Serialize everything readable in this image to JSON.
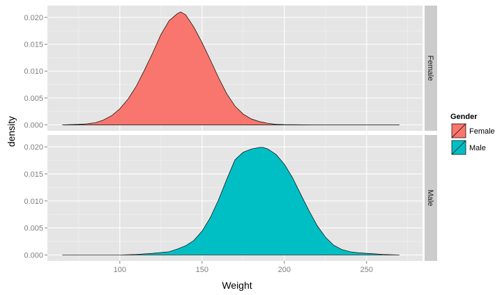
{
  "chart_data": {
    "type": "area",
    "xlabel": "Weight",
    "ylabel": "density",
    "xlim": [
      56,
      284
    ],
    "ylim": [
      -0.0011,
      0.0222
    ],
    "x_ticks": [
      100,
      150,
      200,
      250
    ],
    "x_tick_labels": [
      "100",
      "150",
      "200",
      "250"
    ],
    "y_ticks": [
      0.0,
      0.005,
      0.01,
      0.015,
      0.02
    ],
    "y_tick_labels": [
      "0.000",
      "0.005",
      "0.010",
      "0.015",
      "0.020"
    ],
    "grid": true,
    "facets": [
      "Female",
      "Male"
    ],
    "legend": {
      "title": "Gender",
      "position": "right",
      "entries": [
        "Female",
        "Male"
      ]
    },
    "colors": {
      "Female": "#F8766D",
      "Male": "#00BFC4",
      "panel": "#E5E5E5",
      "grid": "#FFFFFF",
      "strip": "#CCCCCC"
    },
    "series": [
      {
        "name": "Female",
        "x": [
          65,
          70,
          75,
          80,
          85,
          90,
          95,
          100,
          105,
          110,
          115,
          120,
          125,
          130,
          135,
          137,
          140,
          145,
          150,
          155,
          160,
          165,
          170,
          175,
          180,
          185,
          190,
          195,
          200,
          210,
          220,
          230,
          240,
          250,
          260,
          270
        ],
        "y": [
          0.0,
          5e-05,
          0.0001,
          0.0002,
          0.0004,
          0.0009,
          0.0017,
          0.003,
          0.0048,
          0.0072,
          0.0102,
          0.0134,
          0.0168,
          0.0194,
          0.0207,
          0.021,
          0.0205,
          0.0182,
          0.0153,
          0.0121,
          0.0088,
          0.0058,
          0.0035,
          0.002,
          0.0011,
          0.0006,
          0.0003,
          0.0001,
          5e-05,
          2e-05,
          0.0,
          0.0,
          0.0,
          0.0,
          0.0,
          0.0
        ]
      },
      {
        "name": "Male",
        "x": [
          65,
          100,
          110,
          120,
          130,
          135,
          140,
          145,
          150,
          155,
          160,
          165,
          170,
          175,
          180,
          185,
          187,
          190,
          195,
          200,
          205,
          210,
          215,
          220,
          225,
          230,
          235,
          240,
          245,
          250,
          255,
          260,
          265,
          270
        ],
        "y": [
          0.0,
          0.0,
          0.0001,
          0.0003,
          0.0006,
          0.0011,
          0.0017,
          0.0027,
          0.0044,
          0.0069,
          0.0102,
          0.014,
          0.0176,
          0.019,
          0.0196,
          0.0199,
          0.0199,
          0.0196,
          0.0186,
          0.0168,
          0.0143,
          0.0112,
          0.0082,
          0.0054,
          0.0033,
          0.0018,
          0.001,
          0.0006,
          0.0004,
          0.0003,
          0.0002,
          0.0001,
          5e-05,
          0.0
        ]
      }
    ]
  }
}
